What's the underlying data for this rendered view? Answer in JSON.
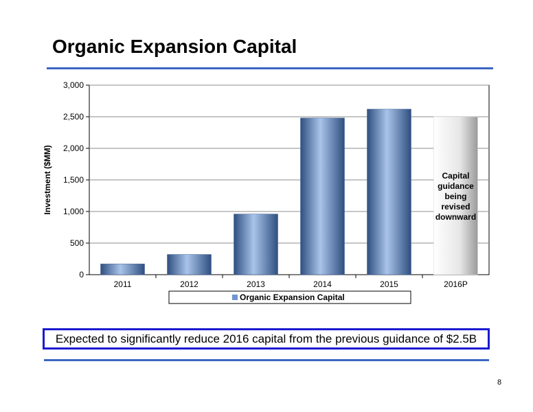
{
  "slide": {
    "title": "Organic Expansion Capital",
    "callout_text": "Expected to significantly reduce 2016 capital from the previous guidance of $2.5B",
    "page_number": "8"
  },
  "colors": {
    "accent_rule": "#3a66c4",
    "callout_border": "#1a1ad0",
    "bar_dark": "#2f4f80",
    "bar_light": "#a9c4ea",
    "projection_bar": "#e6e6e6"
  },
  "chart_data": {
    "type": "bar",
    "title": "",
    "xlabel": "",
    "ylabel": "Investment ($MM)",
    "ylim": [
      0,
      3000
    ],
    "yticks": [
      0,
      500,
      1000,
      1500,
      2000,
      2500,
      3000
    ],
    "ytick_labels": [
      "0",
      "500",
      "1,000",
      "1,500",
      "2,000",
      "2,500",
      "3,000"
    ],
    "grid": true,
    "legend_position": "bottom",
    "categories": [
      "2011",
      "2012",
      "2013",
      "2014",
      "2015",
      "2016P"
    ],
    "series": [
      {
        "name": "Organic Expansion Capital",
        "values": [
          170,
          320,
          960,
          2480,
          2620,
          2500
        ]
      }
    ],
    "projection_category": "2016P",
    "annotations": [
      {
        "category": "2016P",
        "lines": [
          "Capital",
          "guidance",
          "being",
          "revised",
          "downward"
        ]
      }
    ]
  }
}
